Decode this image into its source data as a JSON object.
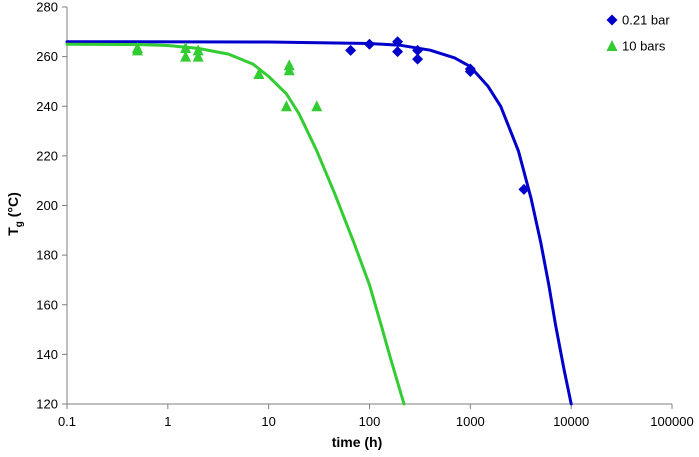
{
  "chart_data": {
    "type": "scatter",
    "title": "",
    "xlabel": "time  (h)",
    "ylabel_main": "T",
    "ylabel_sub": "g",
    "ylabel_rest": " (°C)",
    "x_scale": "log",
    "xlim": [
      0.1,
      100000
    ],
    "ylim": [
      120,
      280
    ],
    "x_ticks": [
      0.1,
      1,
      10,
      100,
      1000,
      10000,
      100000
    ],
    "x_tick_labels": [
      "0.1",
      "1",
      "10",
      "100",
      "1000",
      "10000",
      "100000"
    ],
    "y_ticks": [
      120,
      140,
      160,
      180,
      200,
      220,
      240,
      260,
      280
    ],
    "y_tick_labels": [
      "120",
      "140",
      "160",
      "180",
      "200",
      "220",
      "240",
      "260",
      "280"
    ],
    "grid": false,
    "legend_position": "top-right",
    "series": [
      {
        "name": "0.21 bar",
        "marker": "diamond",
        "color": "#0000cc",
        "points": [
          {
            "x": 65,
            "y": 262.5
          },
          {
            "x": 100,
            "y": 265
          },
          {
            "x": 190,
            "y": 266
          },
          {
            "x": 190,
            "y": 262
          },
          {
            "x": 300,
            "y": 262.5
          },
          {
            "x": 300,
            "y": 259
          },
          {
            "x": 1000,
            "y": 255
          },
          {
            "x": 1000,
            "y": 254
          },
          {
            "x": 3400,
            "y": 206.5
          }
        ],
        "fit_curve": [
          {
            "x": 0.1,
            "y": 266
          },
          {
            "x": 10,
            "y": 265.9
          },
          {
            "x": 100,
            "y": 265.3
          },
          {
            "x": 200,
            "y": 264.6
          },
          {
            "x": 400,
            "y": 262.6
          },
          {
            "x": 700,
            "y": 259.5
          },
          {
            "x": 1000,
            "y": 256
          },
          {
            "x": 1500,
            "y": 248
          },
          {
            "x": 2000,
            "y": 240
          },
          {
            "x": 3000,
            "y": 222
          },
          {
            "x": 4000,
            "y": 203
          },
          {
            "x": 5000,
            "y": 185
          },
          {
            "x": 6000,
            "y": 168
          },
          {
            "x": 7000,
            "y": 152
          },
          {
            "x": 8500,
            "y": 134
          },
          {
            "x": 10000,
            "y": 120
          }
        ]
      },
      {
        "name": "10 bars",
        "marker": "triangle",
        "color": "#33cc33",
        "points": [
          {
            "x": 0.5,
            "y": 263.5
          },
          {
            "x": 0.5,
            "y": 262.5
          },
          {
            "x": 1.5,
            "y": 263.5
          },
          {
            "x": 1.5,
            "y": 260
          },
          {
            "x": 2,
            "y": 262.5
          },
          {
            "x": 2,
            "y": 260
          },
          {
            "x": 8,
            "y": 253
          },
          {
            "x": 15,
            "y": 240
          },
          {
            "x": 16,
            "y": 256.5
          },
          {
            "x": 16,
            "y": 254.5
          },
          {
            "x": 30,
            "y": 240
          }
        ],
        "fit_curve": [
          {
            "x": 0.1,
            "y": 265
          },
          {
            "x": 0.5,
            "y": 264.9
          },
          {
            "x": 1,
            "y": 264.5
          },
          {
            "x": 2,
            "y": 263.3
          },
          {
            "x": 4,
            "y": 261
          },
          {
            "x": 7,
            "y": 257
          },
          {
            "x": 10,
            "y": 252
          },
          {
            "x": 15,
            "y": 245
          },
          {
            "x": 20,
            "y": 237
          },
          {
            "x": 30,
            "y": 222
          },
          {
            "x": 45,
            "y": 205
          },
          {
            "x": 70,
            "y": 185
          },
          {
            "x": 100,
            "y": 168
          },
          {
            "x": 130,
            "y": 152
          },
          {
            "x": 160,
            "y": 139
          },
          {
            "x": 220,
            "y": 120
          }
        ]
      }
    ]
  }
}
